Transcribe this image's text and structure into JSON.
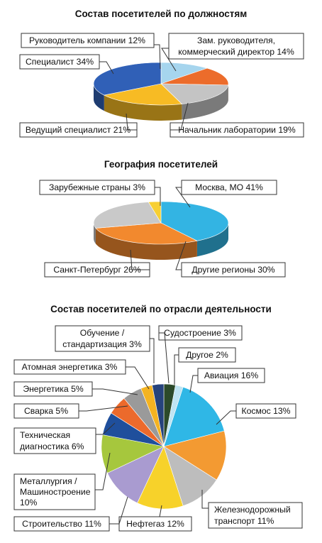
{
  "chart_data": [
    {
      "type": "pie",
      "title": "Состав посетителей по должностям",
      "slices": [
        {
          "label": "Руководитель компании",
          "value": 12,
          "text": "Руководитель компании 12%",
          "color": "#a6d5ee"
        },
        {
          "label": "Зам. руководителя, коммерческий директор",
          "value": 14,
          "lines": [
            "Зам. руководителя,",
            "коммерческий директор 14%"
          ],
          "color": "#ec6c2b"
        },
        {
          "label": "Начальник лаборатории",
          "value": 19,
          "text": "Начальник лаборатории 19%",
          "color": "#c4c4c4"
        },
        {
          "label": "Ведущий специалист",
          "value": 21,
          "text": "Ведущий специалист 21%",
          "color": "#f7bb24"
        },
        {
          "label": "Специалист",
          "value": 34,
          "text": "Специалист 34%",
          "color": "#3060b7"
        }
      ]
    },
    {
      "type": "pie",
      "title": "География посетителей",
      "slices": [
        {
          "label": "Москва, МО",
          "value": 41,
          "text": "Москва, МО 41%",
          "color": "#33b4e3"
        },
        {
          "label": "Другие регионы",
          "value": 30,
          "text": "Другие регионы 30%",
          "color": "#f2892e"
        },
        {
          "label": "Санкт-Петербург",
          "value": 26,
          "text": "Санкт-Петербург 26%",
          "color": "#c9c9c9"
        },
        {
          "label": "Зарубежные страны",
          "value": 3,
          "text": "Зарубежные страны 3%",
          "color": "#f7cf33"
        }
      ]
    },
    {
      "type": "pie",
      "title": "Состав посетителей по отрасли деятельности",
      "slices": [
        {
          "label": "Судостроение",
          "value": 3,
          "text": "Судостроение 3%",
          "color": "#2c4a2a"
        },
        {
          "label": "Другое",
          "value": 2,
          "text": "Другое 2%",
          "color": "#bfe4f2"
        },
        {
          "label": "Авиация",
          "value": 16,
          "text": "Авиация 16%",
          "color": "#2fb7e6"
        },
        {
          "label": "Космос",
          "value": 13,
          "text": "Космос 13%",
          "color": "#f39a32"
        },
        {
          "label": "Железнодорожный транспорт",
          "value": 11,
          "lines": [
            "Железнодорожный",
            "транспорт 11%"
          ],
          "color": "#bdbdbd"
        },
        {
          "label": "Нефтегаз",
          "value": 12,
          "text": "Нефтегаз 12%",
          "color": "#f7d22a"
        },
        {
          "label": "Строительство",
          "value": 11,
          "text": "Строительство 11%",
          "color": "#a99bd0"
        },
        {
          "label": "Металлургия / Машиностроение",
          "value": 10,
          "lines": [
            "Металлургия /",
            "Машиностроение",
            "10%"
          ],
          "color": "#a6c73d"
        },
        {
          "label": "Техническая диагностика",
          "value": 6,
          "lines": [
            "Техническая",
            "диагностика 6%"
          ],
          "color": "#1f4f9c"
        },
        {
          "label": "Сварка",
          "value": 5,
          "text": "Сварка 5%",
          "color": "#ec6a2c"
        },
        {
          "label": "Энергетика",
          "value": 5,
          "text": "Энергетика 5%",
          "color": "#9a9a9a"
        },
        {
          "label": "Атомная энергетика",
          "value": 3,
          "text": "Атомная энергетика 3%",
          "color": "#f4b321"
        },
        {
          "label": "Обучение / стандартизация",
          "value": 3,
          "lines": [
            "Обучение /",
            "стандартизация 3%"
          ],
          "color": "#26437c"
        }
      ]
    }
  ]
}
